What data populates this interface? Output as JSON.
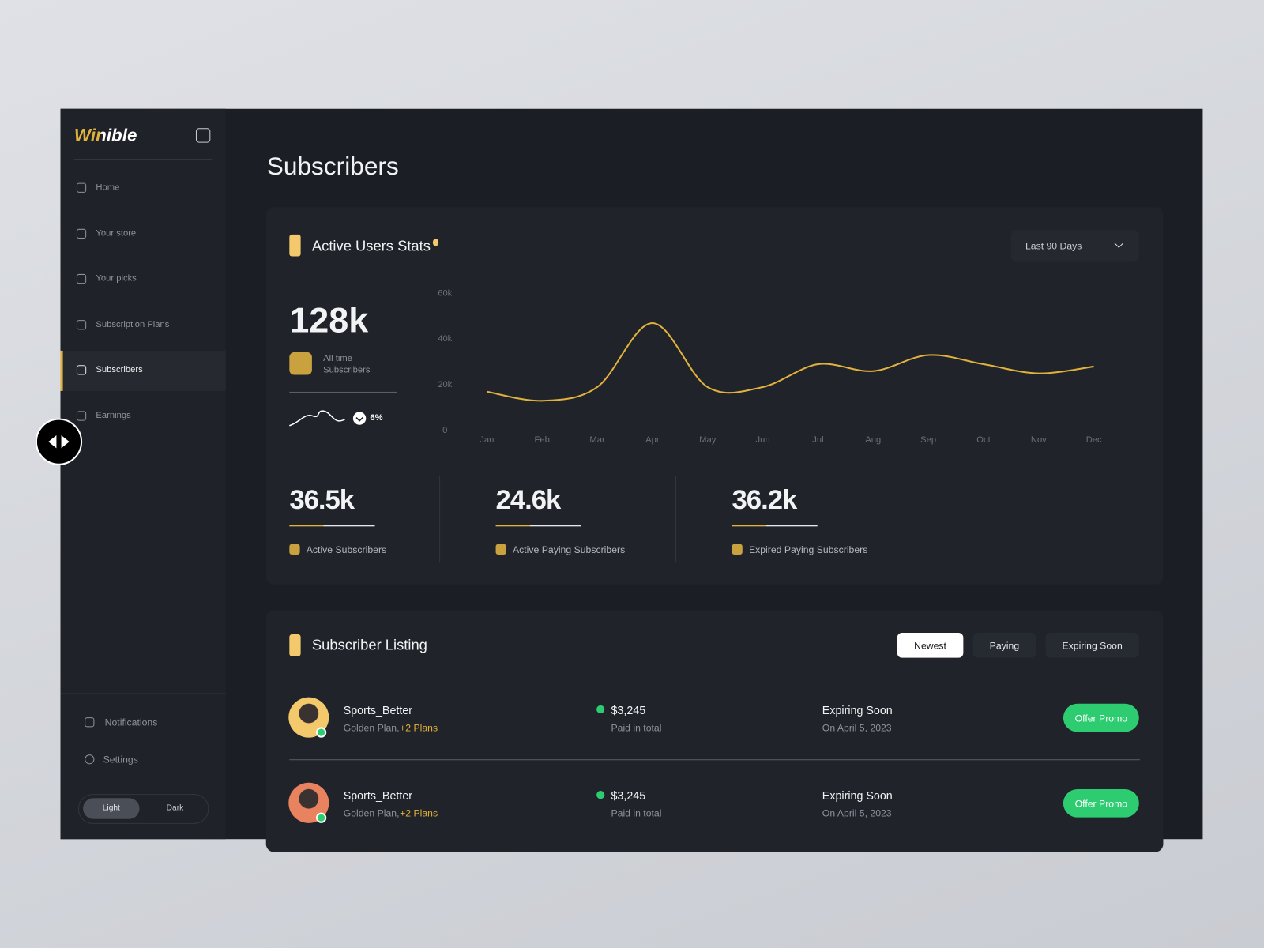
{
  "sidebar": {
    "logo": "Winible",
    "nav": [
      "Home",
      "Your store",
      "Your picks",
      "Subscription Plans",
      "Subscribers",
      "Earnings"
    ],
    "bottom": [
      "Notifications",
      "Settings"
    ],
    "theme": [
      "Light",
      "Dark"
    ]
  },
  "page_title": "Subscribers",
  "stats": {
    "title": "Active Users Stats",
    "range": "Last 90 Days",
    "total": "128k",
    "total_label": "All time Subscribers",
    "change": "6%",
    "chart": {
      "type": "line",
      "categories": [
        "Jan",
        "Feb",
        "Mar",
        "Apr",
        "May",
        "Jun",
        "Jul",
        "Aug",
        "Sep",
        "Oct",
        "Nov",
        "Dec"
      ],
      "values": [
        17000,
        13000,
        19000,
        47000,
        19000,
        19000,
        29000,
        26000,
        33000,
        29000,
        25000,
        28000
      ],
      "color": "#e2b33c",
      "ylim": [
        0,
        60000
      ],
      "yticks": [
        0,
        {
          "value": 20000,
          "label": "20k"
        },
        {
          "value": 40000,
          "label": "40k"
        },
        {
          "value": 60000,
          "label": "60k"
        }
      ]
    },
    "metrics": [
      {
        "value": "36.5k",
        "label": "Active Subscribers"
      },
      {
        "value": "24.6k",
        "label": "Active Paying Subscribers"
      },
      {
        "value": "36.2k",
        "label": "Expired Paying Subscribers"
      }
    ]
  },
  "listing": {
    "title": "Subscriber Listing",
    "tabs": [
      "Newest",
      "Paying",
      "Expiring Soon"
    ],
    "rows": [
      {
        "name": "Sports_Better",
        "plan": "Golden Plan,",
        "extra": "+2 Plans",
        "amount": "$3,245",
        "amount_label": "Paid in total",
        "status": "Expiring Soon",
        "date": "On April 5, 2023",
        "action": "Offer Promo"
      },
      {
        "name": "Sports_Better",
        "plan": "Golden Plan,",
        "extra": "+2 Plans",
        "amount": "$3,245",
        "amount_label": "Paid in total",
        "status": "Expiring Soon",
        "date": "On April 5, 2023",
        "action": "Offer Promo"
      }
    ]
  }
}
